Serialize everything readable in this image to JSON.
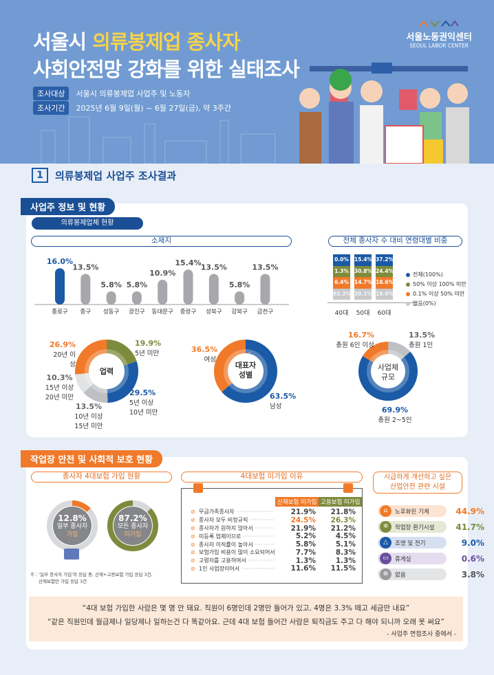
{
  "header": {
    "title_line1_plain": "서울시 ",
    "title_line1_highlight": "의류봉제업 종사자",
    "title_line2": "사회안전망 강화를 위한 실태조사",
    "target_label": "조사대상",
    "target_value": "서울시 의류봉제업 사업주 및 노동자",
    "period_label": "조사기간",
    "period_value": "2025년 6월 9일(월) ~ 6월 27일(금), 약 3주간",
    "logo_kr": "서울노동권익센터",
    "logo_en": "SEOUL LABOR CENTER"
  },
  "section1": {
    "number": "1",
    "title": "의류봉제업 사업주 조사결과"
  },
  "card1": {
    "tab": "사업주 정보 및 현황",
    "subpill": "의류봉제업체 현황"
  },
  "card2": {
    "tab": "작업장 안전 및 사회적 보호 현황"
  },
  "colors": {
    "blue": "#1a5aa6",
    "orange": "#f07a2a",
    "olive": "#7d8b3c",
    "gray": "#a7a8ab",
    "lightgray": "#dcdde0"
  },
  "chart_data": [
    {
      "type": "bar",
      "title": "소재지",
      "categories": [
        "종로구",
        "중구",
        "성동구",
        "광진구",
        "동대문구",
        "중랑구",
        "성북구",
        "강북구",
        "금천구"
      ],
      "values": [
        16.0,
        13.5,
        5.8,
        5.8,
        10.9,
        15.4,
        13.5,
        5.8,
        13.5
      ],
      "labels": [
        "16.0%",
        "13.5%",
        "5.8%",
        "5.8%",
        "10.9%",
        "15.4%",
        "13.5%",
        "5.8%",
        "13.5%"
      ],
      "highlight": "종로구"
    },
    {
      "type": "table",
      "title": "전체 종사자 수 대비 연령대별 비중",
      "categories": [
        "40대",
        "50대",
        "60대"
      ],
      "series": [
        {
          "name": "전체(100%)",
          "color": "#1a5aa6",
          "values": [
            "0.0%",
            "15.4%",
            "37.2%"
          ]
        },
        {
          "name": "50% 이상 100% 미만",
          "color": "#7d8b3c",
          "values": [
            "1.3%",
            "30.8%",
            "24.4%"
          ]
        },
        {
          "name": "0.1% 이상 50% 미만",
          "color": "#f07a2a",
          "values": [
            "6.4%",
            "14.7%",
            "18.6%"
          ]
        },
        {
          "name": "없음(0%)",
          "color": "#c8c9cc",
          "values": [
            "92.3%",
            "39.1%",
            "19.9%"
          ]
        }
      ]
    },
    {
      "type": "pie",
      "title": "업력",
      "slices": [
        {
          "label": "5년 미만",
          "value": 19.9,
          "text": "19.9%",
          "color": "#7d8b3c"
        },
        {
          "label": "5년 이상 10년 미만",
          "value": 29.5,
          "text": "29.5%",
          "color": "#1a5aa6"
        },
        {
          "label": "10년 이상 15년 미만",
          "value": 13.5,
          "text": "13.5%",
          "color": "#bfc0c3"
        },
        {
          "label": "15년 이상 20년 미만",
          "value": 10.3,
          "text": "10.3%",
          "color": "#e2e3e5"
        },
        {
          "label": "20년 이상",
          "value": 26.9,
          "text": "26.9%",
          "color": "#f07a2a"
        }
      ]
    },
    {
      "type": "pie",
      "title": "대표자 성별",
      "slices": [
        {
          "label": "남성",
          "value": 63.5,
          "text": "63.5%",
          "color": "#1a5aa6"
        },
        {
          "label": "여성",
          "value": 36.5,
          "text": "36.5%",
          "color": "#f07a2a"
        }
      ]
    },
    {
      "type": "pie",
      "title": "사업체 규모",
      "slices": [
        {
          "label": "총원 1인",
          "value": 13.5,
          "text": "13.5%",
          "color": "#bfc0c3"
        },
        {
          "label": "총원 2~5인",
          "value": 69.9,
          "text": "69.9%",
          "color": "#1a5aa6"
        },
        {
          "label": "총원 6인 이상",
          "value": 16.7,
          "text": "16.7%",
          "color": "#f07a2a"
        }
      ]
    },
    {
      "type": "pie",
      "title": "종사자 4대보험 가입 현황",
      "slices": [
        {
          "label": "일부 종사자 가입",
          "value": 12.8,
          "text": "12.8%",
          "color": "#f07a2a"
        },
        {
          "label": "모든 종사자 미가입",
          "value": 87.2,
          "text": "87.2%",
          "color": "#7d8b3c"
        }
      ]
    },
    {
      "type": "table",
      "title": "4대보험 미가입 이유",
      "columns": [
        "산재보험 미가입",
        "고용보험 미가입"
      ],
      "rows": [
        {
          "reason": "무급가족종사자",
          "a": "21.9%",
          "b": "21.8%"
        },
        {
          "reason": "종사자 모두 비정규직",
          "a": "24.5%",
          "b": "26.3%",
          "highlight": true
        },
        {
          "reason": "종사자가 원하지 않아서",
          "a": "21.9%",
          "b": "21.2%"
        },
        {
          "reason": "미등록 업체이므로",
          "a": "5.2%",
          "b": "4.5%"
        },
        {
          "reason": "종사자 이직률이 높아서",
          "a": "5.8%",
          "b": "5.1%"
        },
        {
          "reason": "보험가입 비용이 많이 소요되어서",
          "a": "7.7%",
          "b": "8.3%"
        },
        {
          "reason": "고령자를 고용하여서",
          "a": "1.3%",
          "b": "1.3%"
        },
        {
          "reason": "1인 사업장이어서",
          "a": "11.6%",
          "b": "11.5%"
        }
      ]
    },
    {
      "type": "bar",
      "title_line1": "시급하게 개선하고 싶은",
      "title_line2": "산업안전 관련 시설",
      "items": [
        {
          "label": "노후화된 기계",
          "value": "44.9%",
          "icon": "sewing-machine-icon",
          "color": "#f07a2a",
          "bg": "#fde3d1"
        },
        {
          "label": "작업장 환기시설",
          "value": "41.7%",
          "icon": "ventilation-fan-icon",
          "color": "#7d8b3c",
          "bg": "#e6e8d6"
        },
        {
          "label": "조명 및 전기",
          "value": "9.0%",
          "icon": "lamp-icon",
          "color": "#1a5aa6",
          "bg": "#d6e0f1"
        },
        {
          "label": "휴게실",
          "value": "0.6%",
          "icon": "sofa-icon",
          "color": "#6b4f9e",
          "bg": "#e4dcef"
        },
        {
          "label": "없음",
          "value": "3.8%",
          "icon": "x-circle-icon",
          "color": "#9a9b9e",
          "bg": "#e3e4e6"
        }
      ]
    }
  ],
  "insurance": {
    "title": "종사자 4대보험 가입 현황",
    "c1_pct": "12.8%",
    "c1_l1": "일부 종사자",
    "c1_l2": "가입",
    "c2_pct": "87.2%",
    "c2_l1": "모든 종사자",
    "c2_l2": "미가입",
    "note1": "주 : '일부 종사자 가입'의 응답 중, 산재+고용보험 가입 응답 3건,",
    "note2": "산재보험만 가입 응답 3건"
  },
  "donut_centers": {
    "career": "업력",
    "sex_l1": "대표자",
    "sex_l2": "성별",
    "size_l1": "사업체",
    "size_l2": "규모"
  },
  "quotes": {
    "q1": "“4대 보험 가입한 사람은 몇 명 안 돼요. 직원이 6명인데 2명만 들어가 있고, 4명은 3.3% 떼고 세금만 내요”",
    "q2": "“같은 직원인데 월급제나 일당제나 일하는건 다 똑같아요. 근데 4대 보험 들어간 사람은 퇴직금도 주고 다 해야 되니까 오래 못 써요”",
    "source": "- 사업주 면접조사 중에서 -"
  }
}
